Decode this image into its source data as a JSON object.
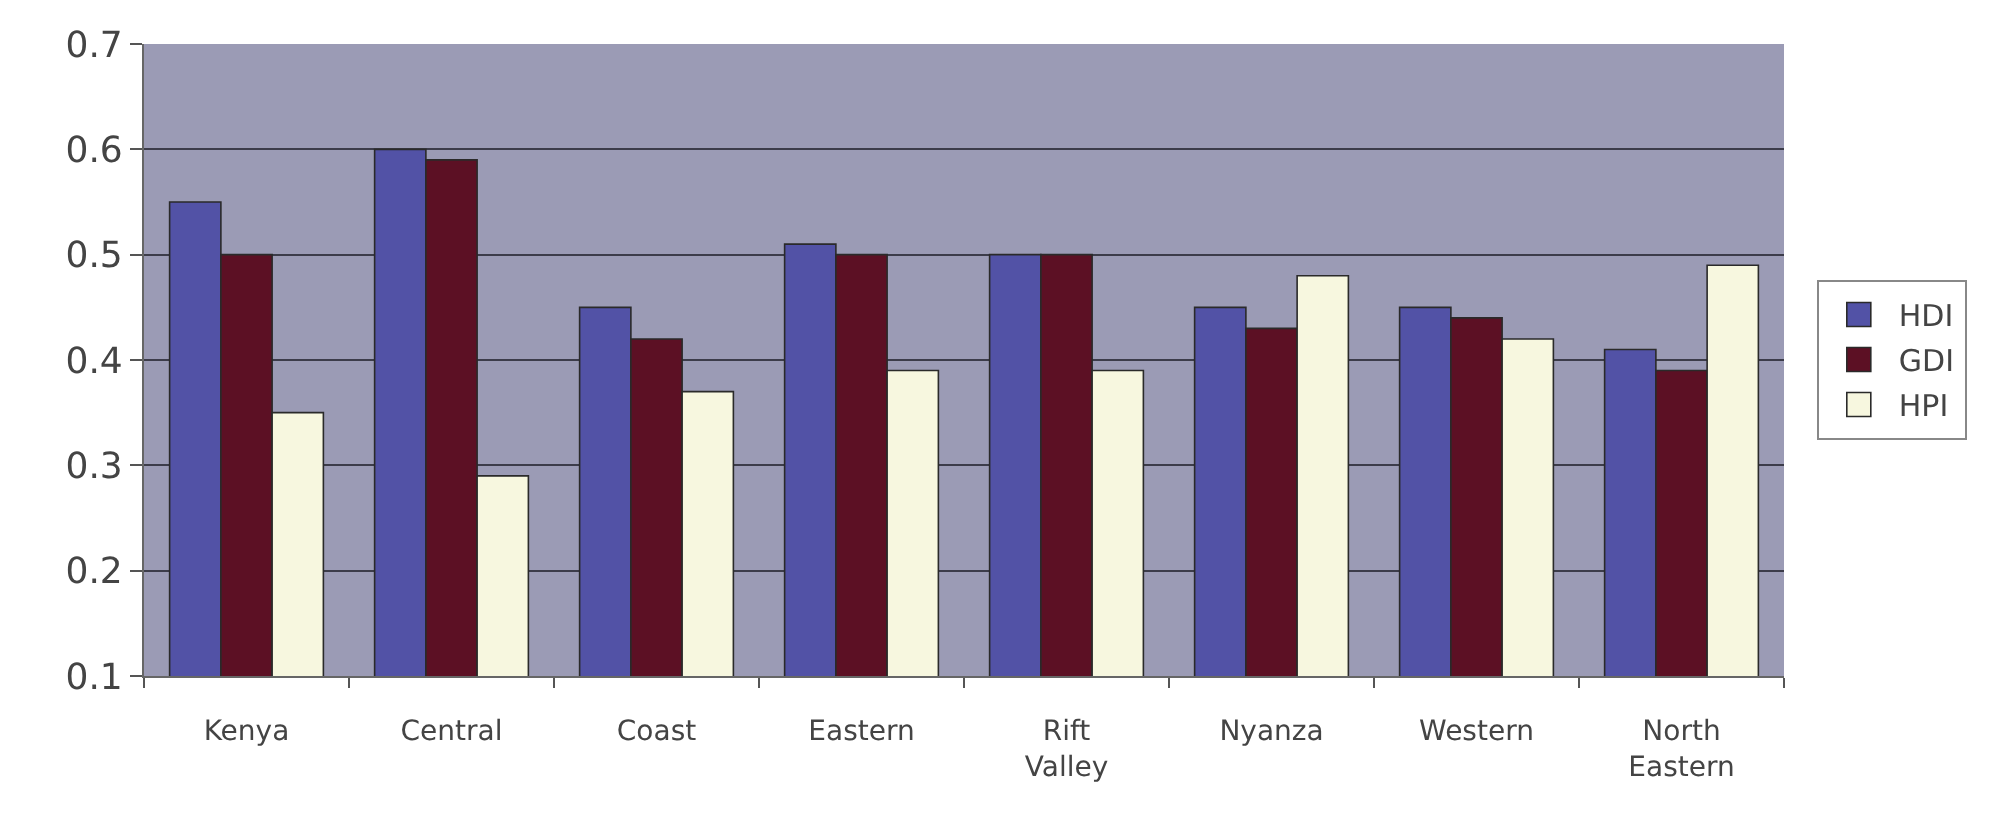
{
  "chart_data": {
    "type": "bar",
    "categories": [
      "Kenya",
      "Central",
      "Coast",
      "Eastern",
      "Rift Valley",
      "Nyanza",
      "Western",
      "North Eastern"
    ],
    "series": [
      {
        "name": "HDI",
        "color": "#5252a6",
        "values": [
          0.55,
          0.6,
          0.45,
          0.51,
          0.5,
          0.45,
          0.45,
          0.41
        ]
      },
      {
        "name": "GDI",
        "color": "#5c1024",
        "values": [
          0.5,
          0.59,
          0.42,
          0.5,
          0.5,
          0.43,
          0.44,
          0.39
        ]
      },
      {
        "name": "HPI",
        "color": "#f7f7df",
        "values": [
          0.35,
          0.29,
          0.37,
          0.39,
          0.39,
          0.48,
          0.42,
          0.49
        ]
      }
    ],
    "ylim": [
      0.1,
      0.7
    ],
    "yticks": [
      0.1,
      0.2,
      0.3,
      0.4,
      0.5,
      0.6,
      0.7
    ],
    "grid": "y",
    "legend": "right"
  }
}
